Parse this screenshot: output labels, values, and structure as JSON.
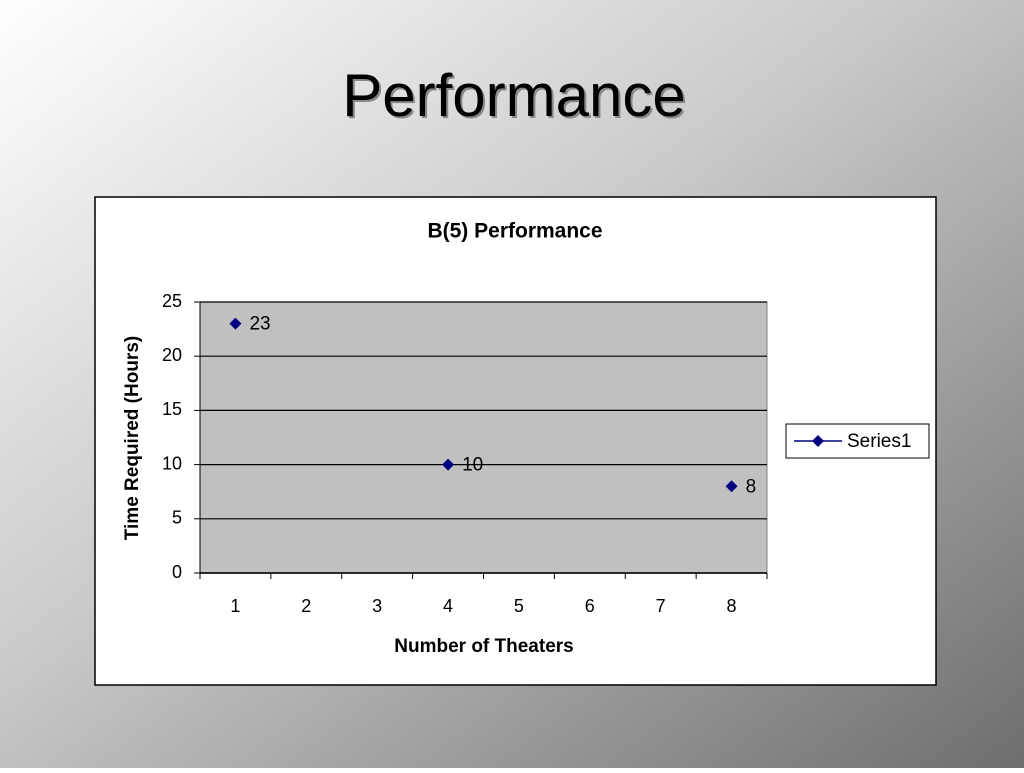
{
  "slide_title": "Performance",
  "chart_data": {
    "type": "line",
    "title": "B(5) Performance",
    "x_label": "Number of Theaters",
    "y_label": "Time Required (Hours)",
    "categories": [
      "1",
      "2",
      "3",
      "4",
      "5",
      "6",
      "7",
      "8"
    ],
    "series": [
      {
        "name": "Series1",
        "color": "#000080",
        "values": [
          23,
          null,
          null,
          10,
          null,
          null,
          null,
          8
        ]
      }
    ],
    "show_line": false,
    "data_labels": true,
    "ylim": [
      0,
      25
    ],
    "yticks": [
      0,
      5,
      10,
      15,
      20,
      25
    ],
    "grid": true,
    "legend": "right",
    "plot_background": "#c0c0c0"
  }
}
